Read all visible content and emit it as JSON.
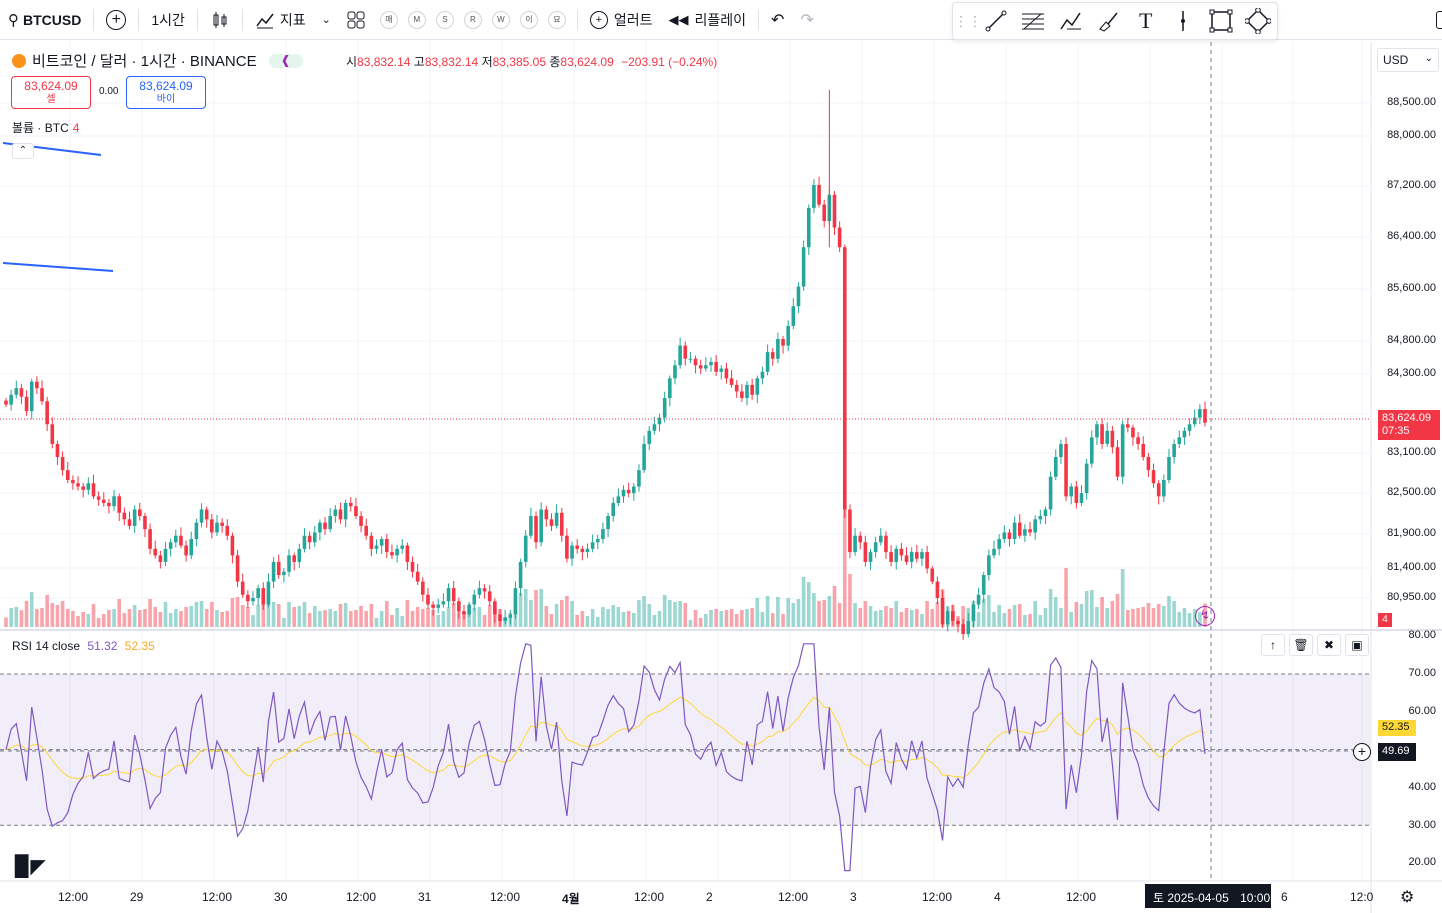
{
  "toolbar": {
    "symbol": "BTCUSD",
    "interval": "1시간",
    "indicators": "지표",
    "alert": "얼러트",
    "replay": "리플레이",
    "quick_intervals": [
      "매",
      "M",
      "S",
      "R",
      "W",
      "이",
      "묘"
    ]
  },
  "legend": {
    "title": "비트코인 / 달러 · 1시간 · BINANCE",
    "o_label": "시",
    "o": "83,832.14",
    "h_label": "고",
    "h": "83,832.14",
    "l_label": "저",
    "l": "83,385.05",
    "c_label": "종",
    "c": "83,624.09",
    "change": "−203.91 (−0.24%)"
  },
  "trade": {
    "sell_price": "83,624.09",
    "sell_label": "셀",
    "spread": "0.00",
    "buy_price": "83,624.09",
    "buy_label": "바이"
  },
  "volume_legend": {
    "label": "볼륨 · BTC",
    "value": "4"
  },
  "rsi_legend": {
    "label": "RSI 14 close",
    "rsi": "51.32",
    "ma": "52.35"
  },
  "currency": "USD",
  "price_axis": [
    "88,500.00",
    "88,000.00",
    "87,200.00",
    "86,400.00",
    "85,600.00",
    "84,800.00",
    "84,300.00",
    "83,700.00",
    "83,100.00",
    "82,500.00",
    "81,900.00",
    "81,400.00",
    "80,950.00"
  ],
  "price_tag": {
    "price": "83,624.09",
    "countdown": "07:35"
  },
  "volume_tag": "4",
  "rsi_axis": [
    "80.00",
    "70.00",
    "60.00",
    "40.00",
    "30.00",
    "20.00"
  ],
  "rsi_tags": {
    "ma": "52.35",
    "cross": "49.69"
  },
  "time_axis": [
    "12:00",
    "29",
    "12:00",
    "30",
    "12:00",
    "31",
    "12:00",
    "4월",
    "12:00",
    "2",
    "12:00",
    "3",
    "12:00",
    "4",
    "12:00",
    "6",
    "12:0"
  ],
  "crosshair_date": "토 2025-04-05",
  "crosshair_time": "10:00",
  "colors": {
    "up": "#26a69a",
    "down": "#f23645",
    "rsi": "#7e57c2",
    "rsi_ma": "#fdd835",
    "accent": "#2962ff"
  },
  "chart_data": {
    "type": "candlestick",
    "interval": "1h",
    "price_range": [
      80700,
      88900
    ],
    "closes": [
      83900,
      84050,
      84150,
      84020,
      83800,
      84250,
      84150,
      83950,
      83600,
      83300,
      83100,
      82900,
      82750,
      82700,
      82650,
      82600,
      82700,
      82500,
      82450,
      82400,
      82350,
      82500,
      82250,
      82150,
      82050,
      82300,
      82200,
      82000,
      81700,
      81600,
      81500,
      81700,
      81800,
      81900,
      81750,
      81600,
      81850,
      82100,
      82300,
      82150,
      81950,
      82100,
      82050,
      81900,
      81600,
      81200,
      81000,
      80900,
      80950,
      81100,
      80850,
      81200,
      81500,
      81300,
      81350,
      81600,
      81500,
      81700,
      81900,
      81800,
      81950,
      82100,
      82000,
      82200,
      82300,
      82150,
      82400,
      82350,
      82200,
      82050,
      81900,
      81700,
      81750,
      81850,
      81650,
      81600,
      81700,
      81750,
      81500,
      81350,
      81200,
      81000,
      80850,
      80800,
      80850,
      80900,
      81100,
      80900,
      80750,
      80700,
      80850,
      81000,
      81100,
      81050,
      80900,
      80700,
      80600,
      80650,
      80700,
      81100,
      81500,
      81900,
      82200,
      81800,
      82300,
      82150,
      82050,
      82250,
      81900,
      81550,
      81750,
      81700,
      81650,
      81700,
      81800,
      81850,
      82000,
      82200,
      82400,
      82500,
      82600,
      82550,
      82650,
      82900,
      83300,
      83500,
      83600,
      83700,
      84000,
      84300,
      84500,
      84800,
      84600,
      84600,
      84500,
      84450,
      84500,
      84550,
      84400,
      84450,
      84300,
      84200,
      84100,
      84000,
      84200,
      84050,
      84300,
      84400,
      84700,
      84600,
      84900,
      84800,
      85100,
      85400,
      85700,
      86300,
      86900,
      87250,
      86950,
      86700,
      87100,
      86600,
      86300,
      82300,
      81650,
      81900,
      81800,
      81500,
      81650,
      81800,
      81900,
      81650,
      81500,
      81700,
      81600,
      81500,
      81650,
      81550,
      81650,
      81400,
      81200,
      80950,
      80550,
      80750,
      80600,
      80550,
      80400,
      80600,
      80850,
      81000,
      81300,
      81600,
      81700,
      81850,
      81950,
      81850,
      82100,
      81900,
      82000,
      81950,
      82150,
      82200,
      82300,
      82800,
      83100,
      83300,
      82500,
      82650,
      82400,
      82550,
      83000,
      83400,
      83600,
      83300,
      83500,
      83250,
      82800,
      83600,
      83550,
      83400,
      83300,
      83100,
      82900,
      82700,
      82500,
      82750,
      83100,
      83300,
      83400,
      83500,
      83600,
      83700,
      83832,
      83624
    ]
  }
}
